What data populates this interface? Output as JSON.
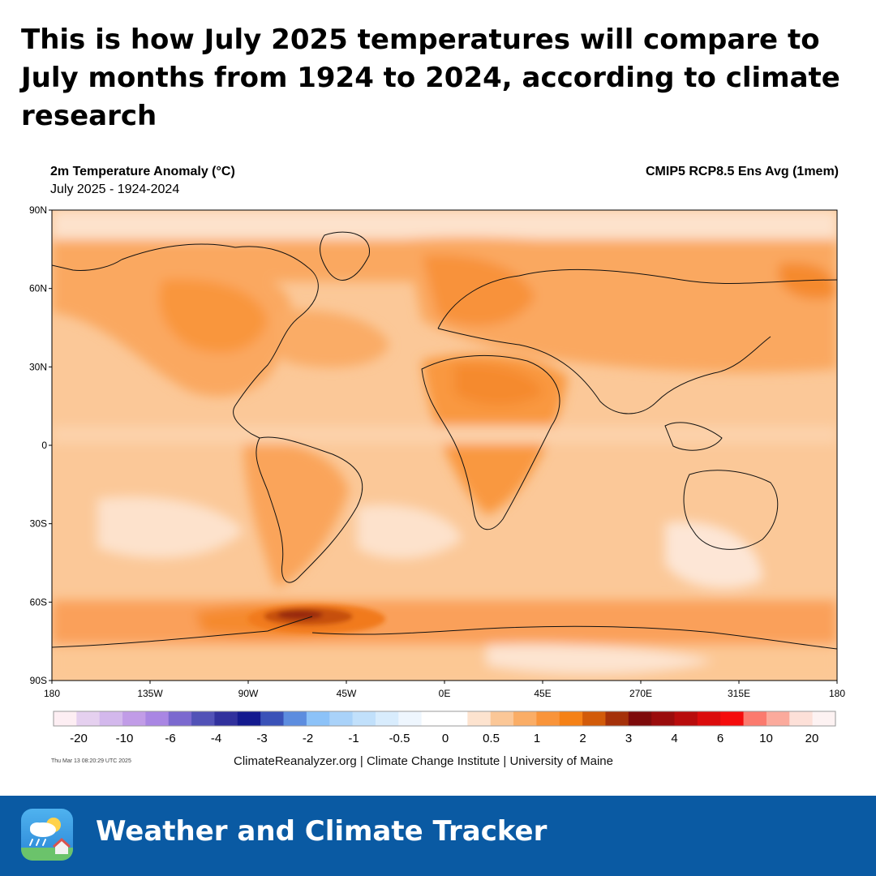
{
  "headline": "This is how July 2025 temperatures will compare to July months from 1924 to 2024, according to climate research",
  "map": {
    "title": "2m Temperature Anomaly (°C)",
    "subtitle": "July 2025 - 1924-2024",
    "source": "CMIP5 RCP8.5 Ens Avg (1mem)",
    "lat_labels": [
      "90N",
      "60N",
      "30N",
      "0",
      "30S",
      "60S",
      "90S"
    ],
    "lon_labels": [
      "180",
      "135W",
      "90W",
      "45W",
      "0E",
      "45E",
      "270E",
      "315E",
      "180"
    ],
    "colorbar": {
      "labels": [
        "-20",
        "-10",
        "-6",
        "-4",
        "-3",
        "-2",
        "-1",
        "-0.5",
        "0",
        "0.5",
        "1",
        "2",
        "3",
        "4",
        "6",
        "10",
        "20"
      ],
      "colors": [
        "#fdeef3",
        "#e5d0ef",
        "#d3b8ec",
        "#c19ce7",
        "#a986e3",
        "#7b69cf",
        "#5252b7",
        "#31319d",
        "#141a8f",
        "#3a52b8",
        "#5d8ddf",
        "#8cc2f8",
        "#a9d2f9",
        "#c1e0fb",
        "#d8ecfd",
        "#eef6fe",
        "#ffffff",
        "#ffffff",
        "#fde3cf",
        "#fbc797",
        "#faad66",
        "#f9943a",
        "#f58116",
        "#d25b0a",
        "#a5310a",
        "#7e0b0b",
        "#9a0c0c",
        "#b80c0c",
        "#db0c0c",
        "#f50c0c",
        "#fb7a6e",
        "#fbaa9c",
        "#fde0d8",
        "#fdf2f2"
      ]
    },
    "timestamp": "Thu Mar 13 08:20:29 UTC 2025",
    "credit": "ClimateReanalyzer.org | Climate Change Institute | University of Maine"
  },
  "footer": {
    "brand": "Weather and Climate Tracker"
  }
}
